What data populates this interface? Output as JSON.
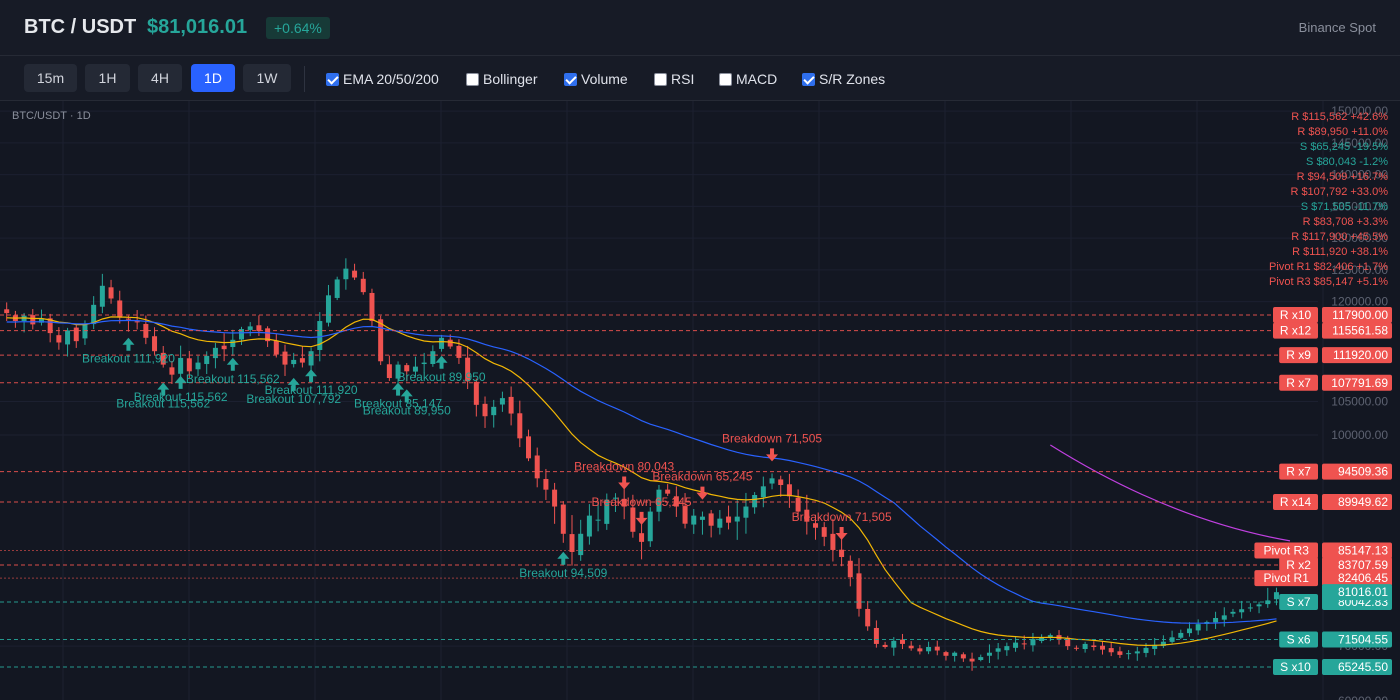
{
  "header": {
    "symbol": "BTC / USDT",
    "price": "$81,016.01",
    "change": "+0.64%",
    "exchange": "Binance Spot"
  },
  "toolbar": {
    "timeframes": [
      "15m",
      "1H",
      "4H",
      "1D",
      "1W"
    ],
    "active_timeframe": "1D",
    "toggles": [
      {
        "label": "EMA 20/50/200",
        "checked": true
      },
      {
        "label": "Bollinger",
        "checked": false
      },
      {
        "label": "Volume",
        "checked": true
      },
      {
        "label": "RSI",
        "checked": false
      },
      {
        "label": "MACD",
        "checked": false
      },
      {
        "label": "S/R Zones",
        "checked": true
      }
    ]
  },
  "chart_caption": "BTC/USDT · 1D",
  "colors": {
    "up": "#26a69a",
    "down": "#ef5350",
    "ema20": "#f2b705",
    "ema50": "#2962ff",
    "ema200": "#c040e0",
    "resistance": "#ef5350",
    "support": "#26a69a"
  },
  "sr_list": [
    {
      "text": "R $115,562 +42.6%",
      "kind": "R"
    },
    {
      "text": "R $89,950 +11.0%",
      "kind": "R"
    },
    {
      "text": "S $65,245 -19.5%",
      "kind": "S"
    },
    {
      "text": "S $80,043 -1.2%",
      "kind": "S"
    },
    {
      "text": "R $94,509 +16.7%",
      "kind": "R"
    },
    {
      "text": "R $107,792 +33.0%",
      "kind": "R"
    },
    {
      "text": "S $71,505 -11.7%",
      "kind": "S"
    },
    {
      "text": "R $83,708 +3.3%",
      "kind": "R"
    },
    {
      "text": "R $117,900 +45.5%",
      "kind": "R"
    },
    {
      "text": "R $111,920 +38.1%",
      "kind": "R"
    },
    {
      "text": "Pivot R1 $82,406 +1.7%",
      "kind": "R"
    },
    {
      "text": "Pivot R3 $85,147 +5.1%",
      "kind": "R"
    }
  ],
  "chart_data": {
    "type": "candlestick",
    "y_axis": {
      "ticks": [
        "150000.00",
        "145000.00",
        "140000.00",
        "135000.00",
        "130000.00",
        "125000.00",
        "120000.00",
        "105000.00",
        "100000.00",
        "70000.00",
        "60000.00"
      ],
      "tick_values": [
        150000,
        145000,
        140000,
        135000,
        130000,
        125000,
        120000,
        105000,
        100000,
        70000,
        60000
      ],
      "range": [
        60000,
        150000
      ]
    },
    "current_price": {
      "value": 81016.01,
      "label": "81016.01"
    },
    "levels": [
      {
        "tag": "R x10",
        "value": 117900.0,
        "label": "117900.00",
        "kind": "R"
      },
      {
        "tag": "R x12",
        "value": 115561.58,
        "label": "115561.58",
        "kind": "R"
      },
      {
        "tag": "R x9",
        "value": 111920.0,
        "label": "111920.00",
        "kind": "R"
      },
      {
        "tag": "R x7",
        "value": 107791.69,
        "label": "107791.69",
        "kind": "R"
      },
      {
        "tag": "R x7",
        "value": 94509.36,
        "label": "94509.36",
        "kind": "R"
      },
      {
        "tag": "R x14",
        "value": 89949.62,
        "label": "89949.62",
        "kind": "R"
      },
      {
        "tag": "Pivot R3",
        "value": 85147.13,
        "label": "85147.13",
        "kind": "P"
      },
      {
        "tag": "R x2",
        "value": 83707.59,
        "label": "83707.59",
        "kind": "R"
      },
      {
        "tag": "Pivot R1",
        "value": 82406.45,
        "label": "82406.45",
        "kind": "P"
      },
      {
        "tag": "S x7",
        "value": 80042.83,
        "label": "80042.83",
        "kind": "S"
      },
      {
        "tag": "S x6",
        "value": 71504.55,
        "label": "71504.55",
        "kind": "S"
      },
      {
        "tag": "S x10",
        "value": 65245.5,
        "label": "65245.50",
        "kind": "S"
      }
    ],
    "close_series": [
      118200,
      117000,
      117800,
      116500,
      117400,
      115200,
      113800,
      115600,
      114000,
      116500,
      119500,
      122500,
      120500,
      117500,
      117200,
      116800,
      114500,
      112500,
      110500,
      109000,
      111500,
      109500,
      110800,
      111800,
      113000,
      112800,
      114200,
      115800,
      116200,
      115500,
      114000,
      112000,
      110500,
      111200,
      110800,
      112500,
      117000,
      121000,
      123500,
      125200,
      123800,
      121500,
      117000,
      111000,
      108500,
      110500,
      109500,
      110200,
      110800,
      112500,
      114500,
      113200,
      111500,
      108000,
      104500,
      102800,
      104200,
      105500,
      103200,
      99500,
      96500,
      93500,
      91800,
      89500,
      86800,
      85000,
      86800,
      88600,
      88200,
      90300,
      90600,
      89500,
      87000,
      86000,
      89000,
      91800,
      91200,
      89500,
      87800,
      88600,
      88500,
      87600,
      88300,
      87900,
      88500,
      89500,
      91000,
      92300,
      93500,
      92500,
      90800,
      89000,
      88000,
      87400,
      86500,
      85200,
      84500,
      82500,
      78500,
      74500,
      70500,
      69800,
      71200,
      70500,
      69500,
      68800,
      69800,
      69000,
      67800,
      68500,
      67200,
      66500,
      67500,
      68500,
      69500,
      70000,
      70800,
      70500,
      71600,
      72000,
      72500,
      71500,
      70000,
      69500,
      70500,
      69800,
      69200,
      68600,
      68000,
      68400,
      68800,
      69600,
      70300,
      71000,
      72000,
      73000,
      74000,
      75000,
      75500,
      76400,
      77000,
      77800,
      78400,
      78800,
      79500,
      80200,
      81016
    ],
    "ema20_start": 117400,
    "ema50_start": 116800,
    "ema200_points": [
      [
        120,
        98500
      ],
      [
        146,
        86100
      ]
    ],
    "markers": [
      {
        "text": "Breakout 111,920",
        "type": "breakout",
        "at": 14
      },
      {
        "text": "Breakout 115,562",
        "type": "breakout",
        "at": 18
      },
      {
        "text": "Breakout 115,562",
        "type": "breakout",
        "at": 20
      },
      {
        "text": "Breakout 115,562",
        "type": "breakout",
        "at": 26
      },
      {
        "text": "Breakout 107,792",
        "type": "breakout",
        "at": 33
      },
      {
        "text": "Breakout 111,920",
        "type": "breakout",
        "at": 35
      },
      {
        "text": "Breakout 85,147",
        "type": "breakout",
        "at": 45
      },
      {
        "text": "Breakout 89,950",
        "type": "breakout",
        "at": 46
      },
      {
        "text": "Breakout 89,950",
        "type": "breakout",
        "at": 50
      },
      {
        "text": "Breakout 94,509",
        "type": "breakout",
        "at": 64
      },
      {
        "text": "Breakdown 80,043",
        "type": "breakdown",
        "at": 71
      },
      {
        "text": "Breakdown 65,245",
        "type": "breakdown",
        "at": 73
      },
      {
        "text": "Breakdown 65,245",
        "type": "breakdown",
        "at": 80
      },
      {
        "text": "Breakdown 71,505",
        "type": "breakdown",
        "at": 88
      },
      {
        "text": "Breakdown 71,505",
        "type": "breakdown",
        "at": 96
      }
    ]
  }
}
